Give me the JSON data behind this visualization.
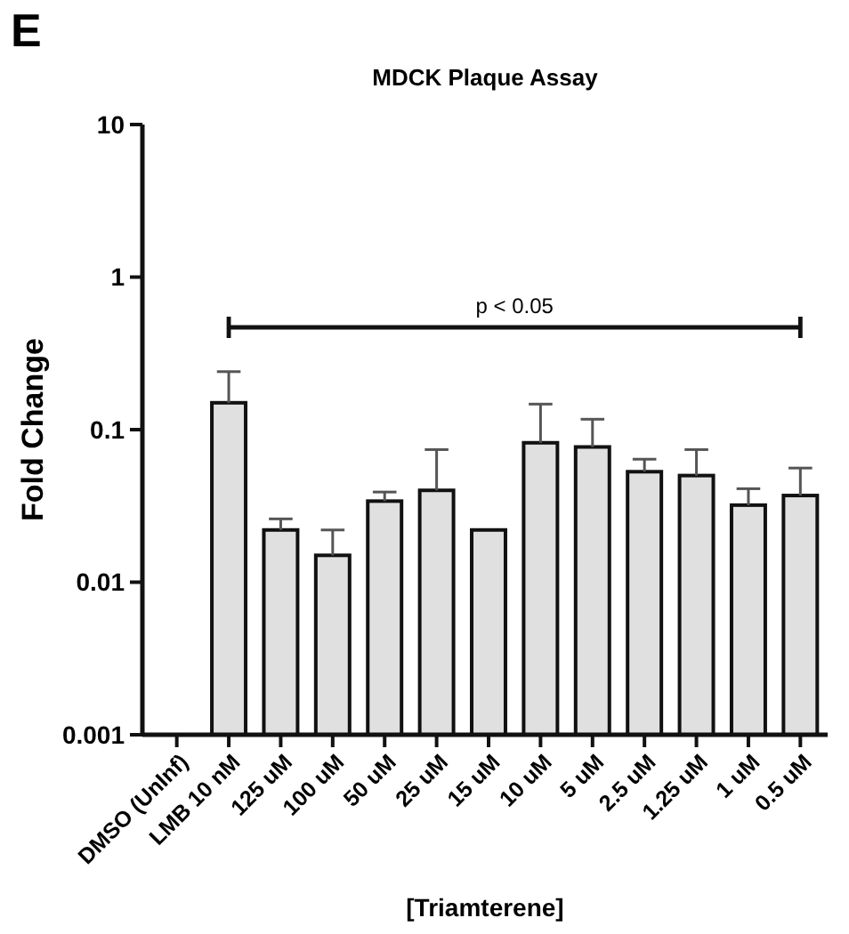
{
  "chart_data": {
    "type": "bar",
    "title": "MDCK Plaque Assay",
    "xlabel": "[Triamterene]",
    "ylabel": "Fold Change",
    "categories": [
      "DMSO (UnInf)",
      "LMB 10 nM",
      "125 uM",
      "100 uM",
      "50 uM",
      "25 uM",
      "15 uM",
      "10 uM",
      "5 uM",
      "2.5 uM",
      "1.25 uM",
      "1 uM",
      "0.5 uM"
    ],
    "values": [
      null,
      0.15,
      0.022,
      0.015,
      0.034,
      0.04,
      0.022,
      0.082,
      0.077,
      0.053,
      0.05,
      0.032,
      0.037
    ],
    "errors": [
      null,
      [
        0.15,
        0.24
      ],
      [
        0.022,
        0.026
      ],
      [
        0.015,
        0.022
      ],
      [
        0.034,
        0.039
      ],
      [
        0.04,
        0.074
      ],
      null,
      [
        0.082,
        0.147
      ],
      [
        0.077,
        0.117
      ],
      [
        0.053,
        0.064
      ],
      [
        0.05,
        0.074
      ],
      [
        0.032,
        0.041
      ],
      [
        0.037,
        0.056
      ]
    ],
    "color": "#e0e0e0",
    "log": true,
    "ylim": [
      0.001,
      10
    ],
    "yticks": [
      0.001,
      0.01,
      0.1,
      1,
      10
    ],
    "grid": false,
    "annotations": [
      "E",
      "p < 0.05"
    ]
  }
}
